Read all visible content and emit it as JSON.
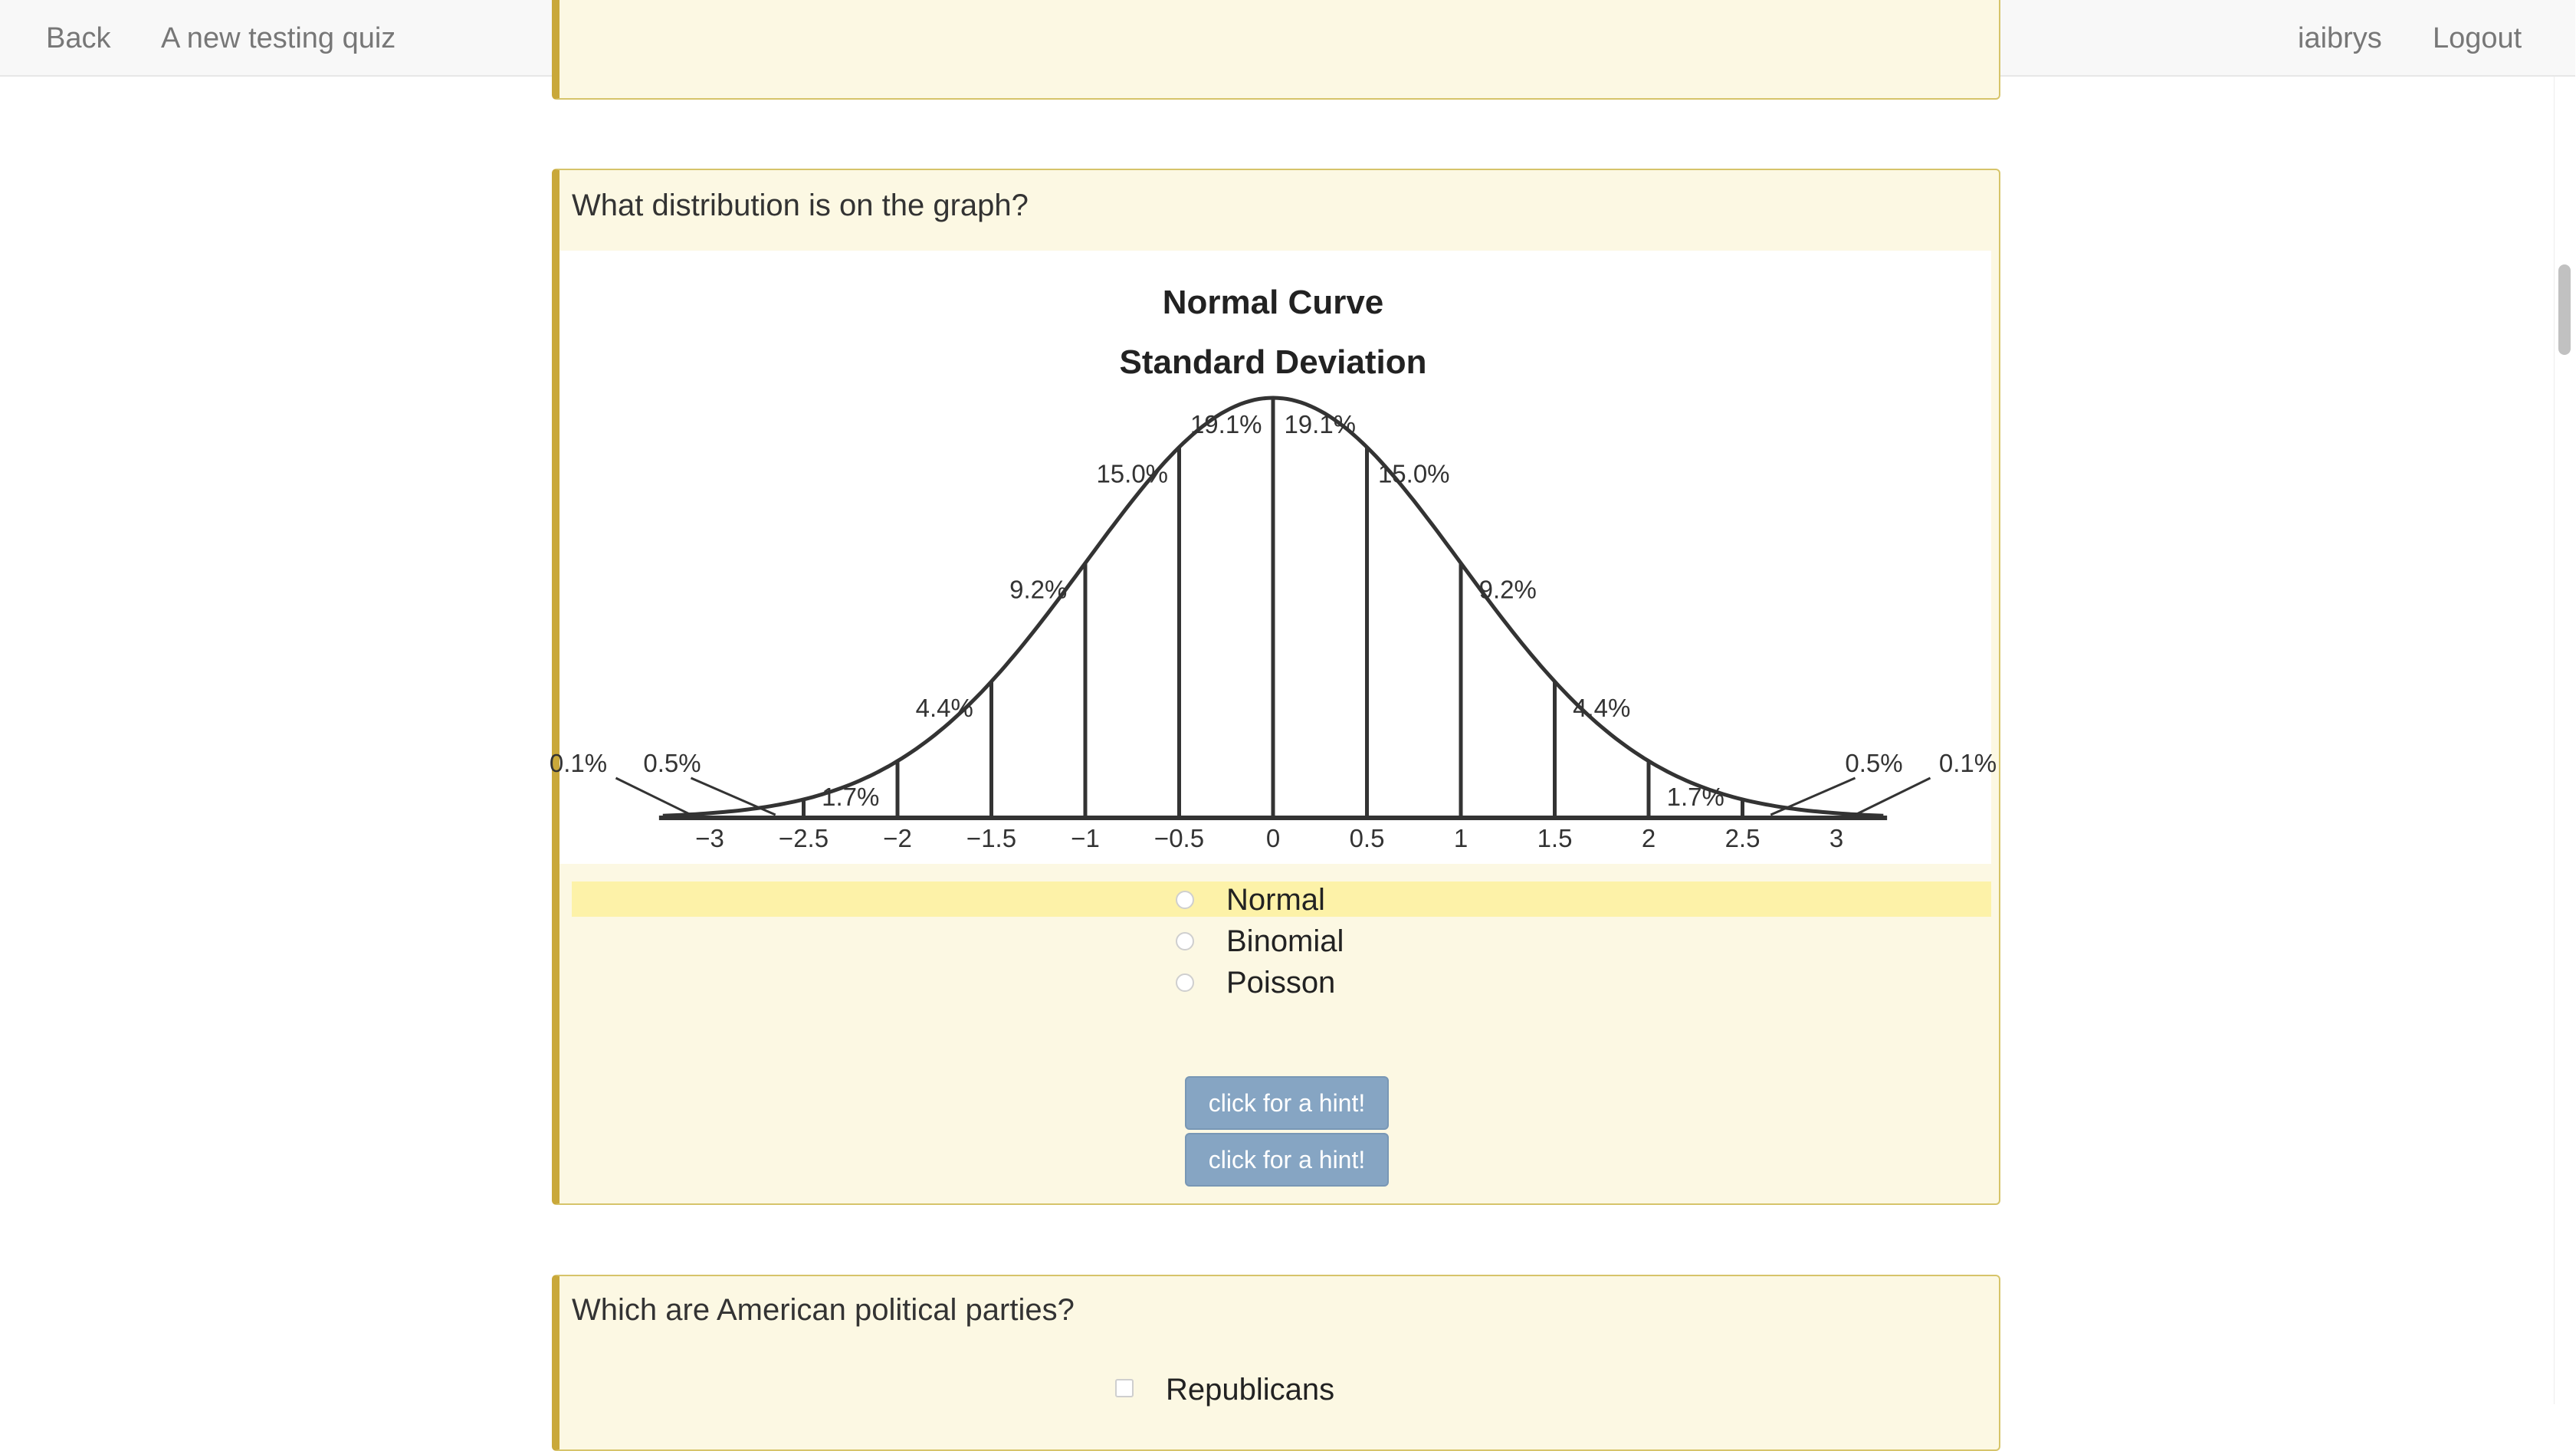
{
  "navbar": {
    "back_label": "Back",
    "quiz_title": "A new testing quiz",
    "username": "iaibrys",
    "logout_label": "Logout"
  },
  "question1": {
    "text": "What distribution is on the graph?",
    "options": [
      {
        "label": "Normal",
        "highlighted": true
      },
      {
        "label": "Binomial",
        "highlighted": false
      },
      {
        "label": "Poisson",
        "highlighted": false
      }
    ],
    "hint_buttons": [
      "click for a hint!",
      "click for a hint!"
    ]
  },
  "question2": {
    "text": "Which are American political parties?",
    "options": [
      {
        "label": "Republicans"
      }
    ]
  },
  "colors": {
    "panel_bg": "#fcf8e3",
    "panel_border": "#c9a83a",
    "option_highlight": "#fdf2a8",
    "hint_button": "#86a5c3"
  },
  "chart_data": {
    "type": "area",
    "title": "Normal Curve",
    "subtitle": "Standard Deviation",
    "x_ticks": [
      "−3",
      "−2.5",
      "−2",
      "−1.5",
      "−1",
      "−0.5",
      "0",
      "0.5",
      "1",
      "1.5",
      "2",
      "2.5",
      "3"
    ],
    "xlim": [
      -3,
      3
    ],
    "grid": false,
    "segments": [
      {
        "from": -3.5,
        "to": -3,
        "label": "0.1%"
      },
      {
        "from": -3,
        "to": -2.5,
        "label": "0.5%"
      },
      {
        "from": -2.5,
        "to": -2,
        "label": "1.7%"
      },
      {
        "from": -2,
        "to": -1.5,
        "label": "4.4%"
      },
      {
        "from": -1.5,
        "to": -1,
        "label": "9.2%"
      },
      {
        "from": -1,
        "to": -0.5,
        "label": "15.0%"
      },
      {
        "from": -0.5,
        "to": 0,
        "label": "19.1%"
      },
      {
        "from": 0,
        "to": 0.5,
        "label": "19.1%"
      },
      {
        "from": 0.5,
        "to": 1,
        "label": "15.0%"
      },
      {
        "from": 1,
        "to": 1.5,
        "label": "9.2%"
      },
      {
        "from": 1.5,
        "to": 2,
        "label": "4.4%"
      },
      {
        "from": 2,
        "to": 2.5,
        "label": "1.7%"
      },
      {
        "from": 2.5,
        "to": 3,
        "label": "0.5%"
      },
      {
        "from": 3,
        "to": 3.5,
        "label": "0.1%"
      }
    ]
  }
}
